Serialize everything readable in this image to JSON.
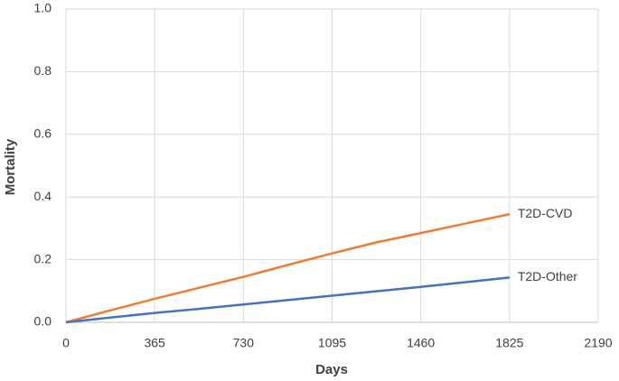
{
  "chart_data": {
    "type": "line",
    "x_label": "Days",
    "y_label": "Mortality",
    "x": [
      0,
      182,
      365,
      547,
      730,
      912,
      1095,
      1277,
      1460,
      1642,
      1825
    ],
    "series": [
      {
        "name": "T2D-CVD",
        "color": "#ed7d31",
        "values": [
          0,
          0.038,
          0.075,
          0.11,
          0.145,
          0.183,
          0.22,
          0.255,
          0.285,
          0.315,
          0.345
        ]
      },
      {
        "name": "T2D-Other",
        "color": "#4472c4",
        "values": [
          0,
          0.015,
          0.03,
          0.043,
          0.057,
          0.071,
          0.085,
          0.099,
          0.113,
          0.128,
          0.143
        ]
      }
    ],
    "xlim": [
      0,
      2190
    ],
    "xticks": [
      0,
      365,
      730,
      1095,
      1460,
      1825,
      2190
    ],
    "ylim": [
      0,
      1
    ],
    "yticks": [
      {
        "value": 0,
        "label": "0.0"
      },
      0.2,
      0.4,
      0.6,
      0.8,
      {
        "value": 1,
        "label": "1.0"
      }
    ],
    "grid": true
  }
}
